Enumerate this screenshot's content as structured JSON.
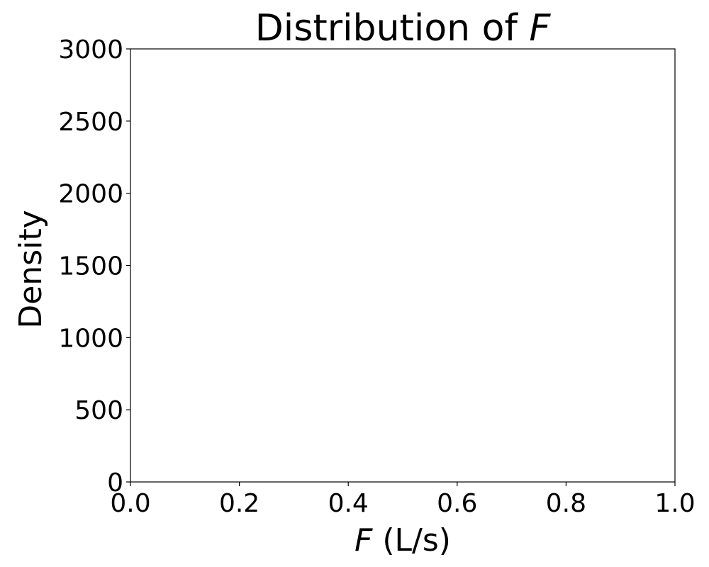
{
  "chart_data": {
    "type": "histogram",
    "title": "Distribution of F",
    "title_prefix": "Distribution of ",
    "title_variable": "F",
    "xlabel": "F (L/s)",
    "xlabel_variable": "F",
    "xlabel_unit": " (L/s)",
    "ylabel": "Density",
    "xlim": [
      0.0,
      1.0
    ],
    "ylim": [
      0,
      3000
    ],
    "x_ticks": [
      0.0,
      0.2,
      0.4,
      0.6,
      0.8,
      1.0
    ],
    "x_tick_labels": [
      "0.0",
      "0.2",
      "0.4",
      "0.6",
      "0.8",
      "1.0"
    ],
    "y_ticks": [
      0,
      500,
      1000,
      1500,
      2000,
      2500,
      3000
    ],
    "y_tick_labels": [
      "0",
      "500",
      "1000",
      "1500",
      "2000",
      "2500",
      "3000"
    ],
    "series": [],
    "grid": false,
    "colors": {
      "axis": "#000000",
      "background": "#ffffff"
    }
  }
}
